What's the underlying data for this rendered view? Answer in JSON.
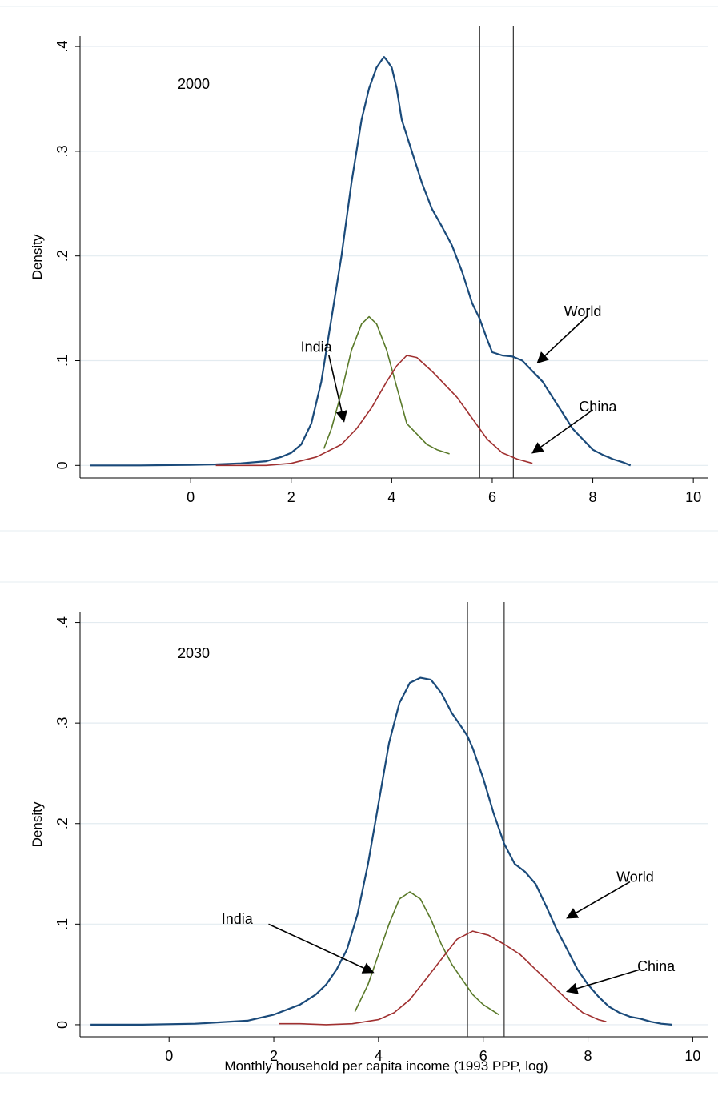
{
  "chart_data": [
    {
      "type": "line",
      "panel_label": "2000",
      "ylabel": "Density",
      "xlabel": "",
      "xlim": [
        -2.2,
        10.3
      ],
      "ylim": [
        -0.012,
        0.41
      ],
      "xticks": [
        0,
        2,
        4,
        6,
        8,
        10
      ],
      "xtick_labels": [
        "0",
        "2",
        "4",
        "6",
        "8",
        "10"
      ],
      "yticks": [
        0,
        0.1,
        0.2,
        0.3,
        0.4
      ],
      "ytick_labels": [
        "0",
        ".1",
        ".2",
        ".3",
        ".4"
      ],
      "grid": "horizontal",
      "vlines": [
        5.75,
        6.42
      ],
      "series": [
        {
          "name": "World",
          "color": "#1a4a7a",
          "width": 2.2,
          "x": [
            -2.0,
            -1.0,
            0.0,
            0.5,
            1.0,
            1.5,
            1.8,
            2.0,
            2.2,
            2.4,
            2.6,
            2.8,
            3.0,
            3.2,
            3.4,
            3.55,
            3.7,
            3.8,
            3.85,
            3.9,
            4.0,
            4.1,
            4.2,
            4.4,
            4.6,
            4.8,
            5.0,
            5.2,
            5.4,
            5.6,
            5.75,
            5.9,
            6.0,
            6.2,
            6.4,
            6.6,
            6.8,
            7.0,
            7.2,
            7.4,
            7.6,
            7.8,
            8.0,
            8.2,
            8.4,
            8.6,
            8.75
          ],
          "y": [
            0,
            0,
            0.0005,
            0.001,
            0.002,
            0.004,
            0.008,
            0.012,
            0.02,
            0.04,
            0.08,
            0.14,
            0.2,
            0.27,
            0.33,
            0.36,
            0.38,
            0.387,
            0.39,
            0.387,
            0.38,
            0.36,
            0.33,
            0.3,
            0.27,
            0.245,
            0.228,
            0.21,
            0.185,
            0.155,
            0.14,
            0.12,
            0.108,
            0.105,
            0.104,
            0.1,
            0.09,
            0.08,
            0.065,
            0.05,
            0.035,
            0.025,
            0.015,
            0.01,
            0.006,
            0.003,
            0
          ]
        },
        {
          "name": "India",
          "color": "#5a7a2a",
          "width": 1.6,
          "x": [
            2.65,
            2.8,
            3.0,
            3.2,
            3.4,
            3.55,
            3.7,
            3.9,
            4.1,
            4.3,
            4.5,
            4.7,
            4.9,
            5.15
          ],
          "y": [
            0.016,
            0.035,
            0.07,
            0.11,
            0.135,
            0.142,
            0.135,
            0.11,
            0.075,
            0.04,
            0.03,
            0.02,
            0.015,
            0.011
          ]
        },
        {
          "name": "China",
          "color": "#a03030",
          "width": 1.6,
          "x": [
            0.5,
            1.0,
            1.5,
            2.0,
            2.5,
            3.0,
            3.3,
            3.6,
            3.9,
            4.1,
            4.3,
            4.5,
            4.8,
            5.0,
            5.3,
            5.6,
            5.9,
            6.2,
            6.5,
            6.8
          ],
          "y": [
            0,
            0,
            0,
            0.002,
            0.008,
            0.02,
            0.035,
            0.055,
            0.08,
            0.095,
            0.105,
            0.103,
            0.09,
            0.08,
            0.065,
            0.045,
            0.025,
            0.012,
            0.006,
            0.002
          ]
        }
      ],
      "annotations": [
        {
          "text": "World",
          "x": 7.8,
          "y": 0.147,
          "arrow_from": [
            7.9,
            0.143
          ],
          "arrow_to": [
            6.9,
            0.098
          ],
          "anchor": "middle"
        },
        {
          "text": "India",
          "x": 2.5,
          "y": 0.113,
          "arrow_from": [
            2.75,
            0.105
          ],
          "arrow_to": [
            3.05,
            0.042
          ],
          "anchor": "middle"
        },
        {
          "text": "China",
          "x": 8.1,
          "y": 0.056,
          "arrow_from": [
            8.0,
            0.053
          ],
          "arrow_to": [
            6.8,
            0.012
          ],
          "anchor": "middle"
        }
      ]
    },
    {
      "type": "line",
      "panel_label": "2030",
      "ylabel": "Density",
      "xlabel": "Monthly household per capita income (1993 PPP, log)",
      "xlim": [
        -1.7,
        10.3
      ],
      "ylim": [
        -0.012,
        0.41
      ],
      "xticks": [
        0,
        2,
        4,
        6,
        8,
        10
      ],
      "xtick_labels": [
        "0",
        "2",
        "4",
        "6",
        "8",
        "10"
      ],
      "yticks": [
        0,
        0.1,
        0.2,
        0.3,
        0.4
      ],
      "ytick_labels": [
        "0",
        ".1",
        ".2",
        ".3",
        ".4"
      ],
      "grid": "horizontal",
      "vlines": [
        5.7,
        6.4
      ],
      "series": [
        {
          "name": "World",
          "color": "#1a4a7a",
          "width": 2.2,
          "x": [
            -1.5,
            -0.5,
            0.5,
            1.5,
            2.0,
            2.5,
            2.8,
            3.0,
            3.2,
            3.4,
            3.6,
            3.8,
            4.0,
            4.2,
            4.4,
            4.6,
            4.8,
            5.0,
            5.2,
            5.4,
            5.6,
            5.7,
            5.8,
            6.0,
            6.2,
            6.4,
            6.6,
            6.8,
            7.0,
            7.2,
            7.4,
            7.6,
            7.8,
            8.0,
            8.2,
            8.4,
            8.6,
            8.8,
            9.0,
            9.2,
            9.4,
            9.6
          ],
          "y": [
            0,
            0,
            0.001,
            0.004,
            0.01,
            0.02,
            0.03,
            0.04,
            0.055,
            0.075,
            0.11,
            0.16,
            0.22,
            0.28,
            0.32,
            0.34,
            0.345,
            0.343,
            0.33,
            0.31,
            0.295,
            0.287,
            0.275,
            0.245,
            0.21,
            0.18,
            0.16,
            0.152,
            0.14,
            0.118,
            0.095,
            0.075,
            0.055,
            0.04,
            0.028,
            0.018,
            0.012,
            0.008,
            0.006,
            0.003,
            0.001,
            0
          ]
        },
        {
          "name": "India",
          "color": "#5a7a2a",
          "width": 1.6,
          "x": [
            3.55,
            3.8,
            4.0,
            4.2,
            4.4,
            4.6,
            4.8,
            5.0,
            5.2,
            5.4,
            5.6,
            5.8,
            6.0,
            6.3
          ],
          "y": [
            0.013,
            0.04,
            0.07,
            0.1,
            0.125,
            0.132,
            0.125,
            0.105,
            0.08,
            0.06,
            0.045,
            0.03,
            0.02,
            0.01
          ]
        },
        {
          "name": "China",
          "color": "#a03030",
          "width": 1.6,
          "x": [
            2.1,
            2.5,
            3.0,
            3.5,
            4.0,
            4.3,
            4.6,
            4.9,
            5.2,
            5.5,
            5.8,
            6.1,
            6.4,
            6.7,
            7.0,
            7.3,
            7.6,
            7.9,
            8.2,
            8.35
          ],
          "y": [
            0.001,
            0.001,
            0,
            0.001,
            0.005,
            0.012,
            0.025,
            0.045,
            0.065,
            0.085,
            0.093,
            0.089,
            0.08,
            0.07,
            0.055,
            0.04,
            0.025,
            0.012,
            0.005,
            0.003
          ]
        }
      ],
      "annotations": [
        {
          "text": "World",
          "x": 8.9,
          "y": 0.147,
          "arrow_from": [
            8.8,
            0.142
          ],
          "arrow_to": [
            7.6,
            0.106
          ],
          "anchor": "middle"
        },
        {
          "text": "India",
          "x": 1.3,
          "y": 0.105,
          "arrow_from": [
            1.9,
            0.1
          ],
          "arrow_to": [
            3.9,
            0.052
          ],
          "anchor": "middle"
        },
        {
          "text": "China",
          "x": 9.3,
          "y": 0.058,
          "arrow_from": [
            9.0,
            0.055
          ],
          "arrow_to": [
            7.6,
            0.033
          ],
          "anchor": "middle"
        }
      ]
    }
  ]
}
